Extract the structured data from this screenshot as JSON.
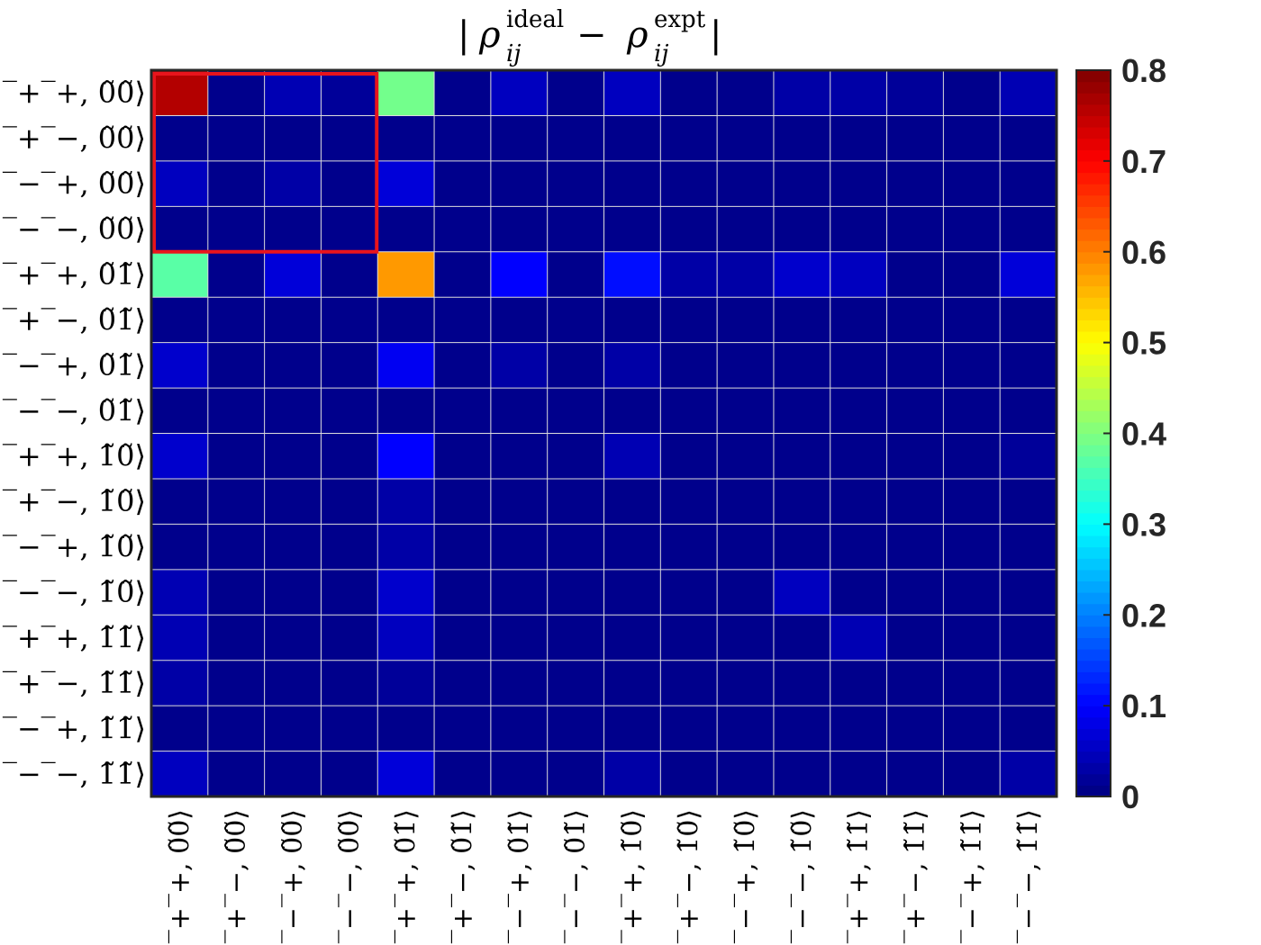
{
  "chart_data": {
    "type": "heatmap",
    "title": {
      "prefix": "| ",
      "rho1": "ρ",
      "sub1": "ij",
      "sup1": "ideal",
      "minus": " − ",
      "rho2": "ρ",
      "sub2": "ij",
      "sup2": "expt",
      "suffix": " |"
    },
    "row_labels": [
      "|‾+‾+, 0̃0̃⟩",
      "|‾+‾−, 0̃0̃⟩",
      "|‾−‾+, 0̃0̃⟩",
      "|‾−‾−, 0̃0̃⟩",
      "|‾+‾+, 0̃1̃⟩",
      "|‾+‾−, 0̃1̃⟩",
      "|‾−‾+, 0̃1̃⟩",
      "|‾−‾−, 0̃1̃⟩",
      "|‾+‾+, 1̃0̃⟩",
      "|‾+‾−, 1̃0̃⟩",
      "|‾−‾+, 1̃0̃⟩",
      "|‾−‾−, 1̃0̃⟩",
      "|‾+‾+, 1̃1̃⟩",
      "|‾+‾−, 1̃1̃⟩",
      "|‾−‾+, 1̃1̃⟩",
      "|‾−‾−, 1̃1̃⟩"
    ],
    "column_labels": [
      "|‾+‾+, 0̃0̃⟩",
      "|‾+‾−, 0̃0̃⟩",
      "|‾−‾+, 0̃0̃⟩",
      "|‾−‾−, 0̃0̃⟩",
      "|‾+‾+, 0̃1̃⟩",
      "|‾+‾−, 0̃1̃⟩",
      "|‾−‾+, 0̃1̃⟩",
      "|‾−‾−, 0̃1̃⟩",
      "|‾+‾+, 1̃0̃⟩",
      "|‾+‾−, 1̃0̃⟩",
      "|‾−‾+, 1̃0̃⟩",
      "|‾−‾−, 1̃0̃⟩",
      "|‾+‾+, 1̃1̃⟩",
      "|‾+‾−, 1̃1̃⟩",
      "|‾−‾+, 1̃1̃⟩",
      "|‾−‾−, 1̃1̃⟩"
    ],
    "values": [
      [
        0.76,
        0.01,
        0.04,
        0.02,
        0.39,
        0.01,
        0.05,
        0.01,
        0.05,
        0.01,
        0.01,
        0.03,
        0.03,
        0.02,
        0.01,
        0.04
      ],
      [
        0.01,
        0.01,
        0.01,
        0.01,
        0.01,
        0.01,
        0.01,
        0.01,
        0.01,
        0.01,
        0.01,
        0.01,
        0.01,
        0.01,
        0.01,
        0.01
      ],
      [
        0.05,
        0.01,
        0.03,
        0.01,
        0.07,
        0.01,
        0.01,
        0.01,
        0.01,
        0.01,
        0.01,
        0.01,
        0.01,
        0.01,
        0.01,
        0.01
      ],
      [
        0.01,
        0.01,
        0.01,
        0.01,
        0.01,
        0.01,
        0.01,
        0.01,
        0.01,
        0.01,
        0.01,
        0.01,
        0.01,
        0.01,
        0.01,
        0.01
      ],
      [
        0.37,
        0.01,
        0.07,
        0.01,
        0.58,
        0.01,
        0.1,
        0.01,
        0.11,
        0.03,
        0.03,
        0.06,
        0.05,
        0.01,
        0.01,
        0.07
      ],
      [
        0.01,
        0.01,
        0.01,
        0.01,
        0.01,
        0.01,
        0.01,
        0.01,
        0.01,
        0.01,
        0.01,
        0.01,
        0.01,
        0.01,
        0.01,
        0.01
      ],
      [
        0.06,
        0.01,
        0.01,
        0.01,
        0.09,
        0.01,
        0.03,
        0.01,
        0.03,
        0.01,
        0.01,
        0.01,
        0.01,
        0.01,
        0.01,
        0.01
      ],
      [
        0.01,
        0.01,
        0.01,
        0.01,
        0.01,
        0.01,
        0.01,
        0.01,
        0.01,
        0.01,
        0.01,
        0.01,
        0.01,
        0.01,
        0.01,
        0.01
      ],
      [
        0.06,
        0.01,
        0.01,
        0.01,
        0.1,
        0.01,
        0.01,
        0.01,
        0.04,
        0.01,
        0.01,
        0.01,
        0.01,
        0.01,
        0.01,
        0.02
      ],
      [
        0.01,
        0.01,
        0.01,
        0.01,
        0.03,
        0.01,
        0.01,
        0.01,
        0.01,
        0.01,
        0.01,
        0.01,
        0.01,
        0.01,
        0.01,
        0.01
      ],
      [
        0.01,
        0.01,
        0.01,
        0.01,
        0.03,
        0.01,
        0.01,
        0.01,
        0.01,
        0.01,
        0.01,
        0.01,
        0.01,
        0.01,
        0.01,
        0.01
      ],
      [
        0.04,
        0.01,
        0.01,
        0.01,
        0.06,
        0.01,
        0.01,
        0.01,
        0.01,
        0.01,
        0.01,
        0.05,
        0.01,
        0.01,
        0.01,
        0.01
      ],
      [
        0.04,
        0.01,
        0.01,
        0.01,
        0.05,
        0.01,
        0.01,
        0.01,
        0.01,
        0.01,
        0.01,
        0.01,
        0.04,
        0.01,
        0.01,
        0.01
      ],
      [
        0.03,
        0.01,
        0.01,
        0.01,
        0.02,
        0.01,
        0.01,
        0.01,
        0.01,
        0.01,
        0.01,
        0.01,
        0.01,
        0.01,
        0.01,
        0.01
      ],
      [
        0.01,
        0.01,
        0.01,
        0.01,
        0.01,
        0.01,
        0.01,
        0.01,
        0.01,
        0.01,
        0.01,
        0.01,
        0.01,
        0.01,
        0.01,
        0.01
      ],
      [
        0.05,
        0.01,
        0.01,
        0.01,
        0.07,
        0.01,
        0.01,
        0.01,
        0.03,
        0.01,
        0.01,
        0.01,
        0.01,
        0.01,
        0.01,
        0.03
      ]
    ],
    "color_range": [
      0,
      0.8
    ],
    "colormap": "jet",
    "colorbar_ticks": [
      "0",
      "0.1",
      "0.2",
      "0.3",
      "0.4",
      "0.5",
      "0.6",
      "0.7",
      "0.8"
    ],
    "colorbar_tick_values": [
      0,
      0.1,
      0.2,
      0.3,
      0.4,
      0.5,
      0.6,
      0.7,
      0.8
    ],
    "highlight_block": {
      "rows": [
        0,
        3
      ],
      "cols": [
        0,
        3
      ],
      "color": "#e8141c"
    },
    "grid": true,
    "grid_color": "#dcdcdc",
    "axes_color": "#262626",
    "legend": "colorbar-right"
  }
}
